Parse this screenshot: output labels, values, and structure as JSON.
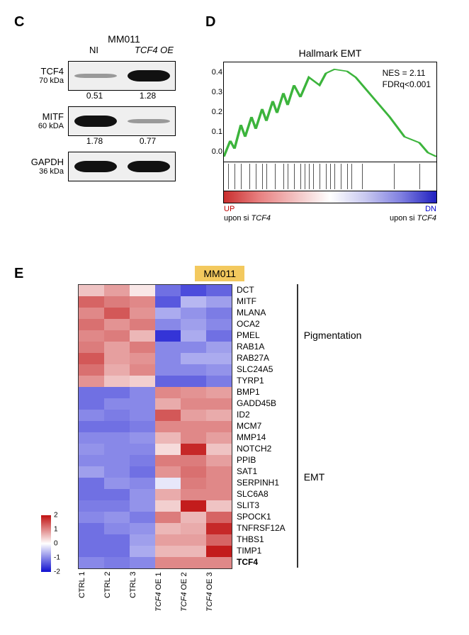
{
  "panelC": {
    "label": "C",
    "cell_line": "MM011",
    "columns": [
      "NI",
      "TCF4 OE"
    ],
    "rows": [
      {
        "name": "TCF4",
        "kda": "70 kDa",
        "intensities": [
          0.2,
          1.0
        ],
        "values": [
          "0.51",
          "1.28"
        ]
      },
      {
        "name": "MITF",
        "kda": "60 kDA",
        "intensities": [
          1.0,
          0.1
        ],
        "values": [
          "1.78",
          "0.77"
        ]
      },
      {
        "name": "GAPDH",
        "kda": "36 kDa",
        "intensities": [
          1.0,
          1.0
        ],
        "values": null
      }
    ]
  },
  "panelD": {
    "label": "D",
    "title": "Hallmark EMT",
    "stats": [
      "NES = 2.11",
      "FDRq<0.001"
    ],
    "y_ticks": [
      "0.4",
      "0.3",
      "0.2",
      "0.1",
      "0.0"
    ],
    "y_tick_pos_pct": [
      10,
      30,
      50,
      70,
      90
    ],
    "ylim": [
      0.0,
      0.45
    ],
    "curve_color": "#3cb43c",
    "curve_points": [
      [
        0,
        0.0
      ],
      [
        3,
        0.08
      ],
      [
        5,
        0.04
      ],
      [
        8,
        0.16
      ],
      [
        10,
        0.1
      ],
      [
        13,
        0.2
      ],
      [
        15,
        0.14
      ],
      [
        18,
        0.24
      ],
      [
        20,
        0.18
      ],
      [
        23,
        0.28
      ],
      [
        25,
        0.22
      ],
      [
        28,
        0.32
      ],
      [
        30,
        0.26
      ],
      [
        33,
        0.36
      ],
      [
        36,
        0.3
      ],
      [
        40,
        0.4
      ],
      [
        45,
        0.36
      ],
      [
        48,
        0.42
      ],
      [
        52,
        0.44
      ],
      [
        58,
        0.43
      ],
      [
        62,
        0.4
      ],
      [
        70,
        0.3
      ],
      [
        78,
        0.2
      ],
      [
        85,
        0.1
      ],
      [
        92,
        0.07
      ],
      [
        96,
        0.02
      ],
      [
        100,
        0.0
      ]
    ],
    "tick_positions_pct": [
      2,
      5,
      8,
      12,
      15,
      18,
      20,
      24,
      28,
      30,
      33,
      36,
      38,
      40,
      42,
      45,
      48,
      50,
      52,
      55,
      58,
      60,
      65,
      80,
      92
    ],
    "gradient_colors": [
      "#c92e2e",
      "#e88080",
      "#f2c0c0",
      "#ffffff",
      "#c8c8f0",
      "#8080e0",
      "#2020c0"
    ],
    "left_label_top": "UP",
    "left_label_bottom": "upon si TCF4",
    "right_label_top": "DN",
    "right_label_bottom": "upon si TCF4"
  },
  "panelE": {
    "label": "E",
    "badge": "MM011",
    "columns": [
      "CTRL 1",
      "CTRL 2",
      "CTRL 3",
      "TCF4 OE 1",
      "TCF4 OE 2",
      "TCF4 OE 3"
    ],
    "column_italic": [
      false,
      false,
      false,
      true,
      true,
      true
    ],
    "legend_ticks": [
      "2",
      "1",
      "0",
      "-1",
      "-2"
    ],
    "legend_tick_pos_pct": [
      0,
      25,
      50,
      75,
      100
    ],
    "legend_colors": [
      "#c01010",
      "#ffffff",
      "#1010d0"
    ],
    "groups": [
      {
        "name": "Pigmentation",
        "genes": [
          {
            "g": "DCT",
            "v": [
              0.5,
              0.8,
              0.2,
              -1.2,
              -1.5,
              -1.3
            ]
          },
          {
            "g": "MITF",
            "v": [
              1.3,
              1.1,
              1.0,
              -1.4,
              -0.6,
              -0.8
            ]
          },
          {
            "g": "MLANA",
            "v": [
              1.0,
              1.4,
              0.9,
              -0.7,
              -0.9,
              -1.1
            ]
          },
          {
            "g": "OCA2",
            "v": [
              1.2,
              0.9,
              1.1,
              -1.0,
              -0.8,
              -1.0
            ]
          },
          {
            "g": "PMEL",
            "v": [
              1.0,
              1.1,
              0.6,
              -1.7,
              -0.7,
              -1.2
            ]
          },
          {
            "g": "RAB1A",
            "v": [
              1.1,
              0.8,
              1.1,
              -1.0,
              -1.0,
              -0.8
            ]
          },
          {
            "g": "RAB27A",
            "v": [
              1.4,
              0.8,
              0.9,
              -1.0,
              -0.7,
              -0.7
            ]
          },
          {
            "g": "SLC24A5",
            "v": [
              1.2,
              0.7,
              1.0,
              -1.0,
              -1.0,
              -0.9
            ]
          },
          {
            "g": "TYRP1",
            "v": [
              0.9,
              0.5,
              0.4,
              -1.3,
              -1.3,
              -1.1
            ]
          }
        ]
      },
      {
        "name": "EMT",
        "genes": [
          {
            "g": "BMP1",
            "v": [
              -1.2,
              -1.2,
              -1.0,
              1.0,
              0.9,
              0.8
            ]
          },
          {
            "g": "GADD45B",
            "v": [
              -1.2,
              -1.0,
              -1.0,
              0.7,
              1.0,
              1.0
            ]
          },
          {
            "g": "ID2",
            "v": [
              -1.0,
              -1.1,
              -1.0,
              1.4,
              0.8,
              0.7
            ]
          },
          {
            "g": "MCM7",
            "v": [
              -1.2,
              -1.2,
              -1.1,
              1.0,
              1.0,
              1.0
            ]
          },
          {
            "g": "MMP14",
            "v": [
              -1.0,
              -1.0,
              -0.9,
              0.6,
              1.0,
              0.8
            ]
          },
          {
            "g": "NOTCH2",
            "v": [
              -0.9,
              -1.0,
              -1.0,
              0.3,
              1.8,
              0.5
            ]
          },
          {
            "g": "PPIB",
            "v": [
              -1.0,
              -1.0,
              -1.1,
              1.1,
              1.1,
              0.8
            ]
          },
          {
            "g": "SAT1",
            "v": [
              -0.8,
              -1.0,
              -1.2,
              0.9,
              1.2,
              1.0
            ]
          },
          {
            "g": "SERPINH1",
            "v": [
              -1.2,
              -0.9,
              -1.0,
              -0.2,
              1.1,
              1.0
            ]
          },
          {
            "g": "SLC6A8",
            "v": [
              -1.2,
              -1.2,
              -0.9,
              0.7,
              1.0,
              1.0
            ]
          },
          {
            "g": "SLIT3",
            "v": [
              -1.1,
              -1.1,
              -0.9,
              0.4,
              1.9,
              0.5
            ]
          },
          {
            "g": "SPOCK1",
            "v": [
              -1.0,
              -0.9,
              -1.1,
              1.1,
              0.6,
              1.3
            ]
          },
          {
            "g": "TNFRSF12A",
            "v": [
              -1.2,
              -1.0,
              -0.9,
              0.6,
              0.7,
              1.8
            ]
          },
          {
            "g": "THBS1",
            "v": [
              -1.2,
              -1.2,
              -0.8,
              0.8,
              0.8,
              1.3
            ]
          },
          {
            "g": "TIMP1",
            "v": [
              -1.2,
              -1.2,
              -0.7,
              0.6,
              0.6,
              1.9
            ]
          },
          {
            "g": "TCF4",
            "v": [
              -1.0,
              -1.1,
              -1.0,
              1.0,
              1.0,
              1.0
            ],
            "bold": true
          }
        ]
      }
    ]
  }
}
